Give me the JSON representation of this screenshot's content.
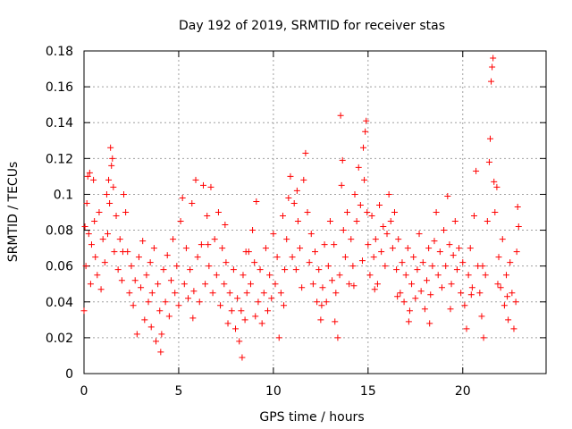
{
  "chart_data": {
    "type": "scatter",
    "title": "Day 192 of 2019, SRMTID for receiver stas",
    "xlabel": "GPS time / hours",
    "ylabel": "SRMTID / TECUs",
    "xlim": [
      0,
      24.4
    ],
    "ylim": [
      0,
      0.18
    ],
    "xticks": [
      0,
      5,
      10,
      15,
      20
    ],
    "xtick_labels": [
      "0",
      "5",
      "10",
      "15",
      "20"
    ],
    "yticks": [
      0,
      0.02,
      0.04,
      0.06,
      0.08,
      0.1,
      0.12,
      0.14,
      0.16,
      0.18
    ],
    "ytick_labels": [
      "0",
      "0.02",
      "0.04",
      "0.06",
      "0.08",
      "0.1",
      "0.12",
      "0.14",
      "0.16",
      "0.18"
    ],
    "grid": true,
    "marker": "+",
    "color": "#ff0000",
    "series": [
      {
        "name": "SRMTID",
        "points": [
          [
            0.0,
            0.035
          ],
          [
            0.05,
            0.082
          ],
          [
            0.1,
            0.06
          ],
          [
            0.15,
            0.095
          ],
          [
            0.2,
            0.11
          ],
          [
            0.25,
            0.078
          ],
          [
            0.3,
            0.112
          ],
          [
            0.35,
            0.05
          ],
          [
            0.4,
            0.072
          ],
          [
            0.5,
            0.108
          ],
          [
            0.55,
            0.085
          ],
          [
            0.6,
            0.065
          ],
          [
            0.7,
            0.055
          ],
          [
            0.8,
            0.09
          ],
          [
            0.9,
            0.047
          ],
          [
            1.0,
            0.075
          ],
          [
            1.1,
            0.062
          ],
          [
            1.2,
            0.1
          ],
          [
            1.3,
            0.108
          ],
          [
            1.35,
            0.095
          ],
          [
            1.4,
            0.126
          ],
          [
            1.45,
            0.116
          ],
          [
            1.5,
            0.12
          ],
          [
            1.55,
            0.104
          ],
          [
            1.6,
            0.068
          ],
          [
            1.7,
            0.088
          ],
          [
            1.8,
            0.058
          ],
          [
            1.9,
            0.075
          ],
          [
            2.0,
            0.052
          ],
          [
            2.1,
            0.1
          ],
          [
            2.2,
            0.09
          ],
          [
            2.3,
            0.068
          ],
          [
            2.4,
            0.045
          ],
          [
            2.5,
            0.06
          ],
          [
            2.6,
            0.038
          ],
          [
            2.7,
            0.052
          ],
          [
            2.8,
            0.022
          ],
          [
            2.9,
            0.065
          ],
          [
            3.0,
            0.048
          ],
          [
            3.1,
            0.074
          ],
          [
            3.2,
            0.03
          ],
          [
            3.3,
            0.055
          ],
          [
            3.4,
            0.04
          ],
          [
            3.5,
            0.062
          ],
          [
            3.6,
            0.045
          ],
          [
            3.7,
            0.07
          ],
          [
            3.8,
            0.018
          ],
          [
            3.9,
            0.05
          ],
          [
            4.0,
            0.035
          ],
          [
            4.05,
            0.012
          ],
          [
            4.1,
            0.022
          ],
          [
            4.2,
            0.058
          ],
          [
            4.3,
            0.04
          ],
          [
            4.4,
            0.066
          ],
          [
            4.5,
            0.032
          ],
          [
            4.6,
            0.052
          ],
          [
            4.7,
            0.075
          ],
          [
            4.8,
            0.045
          ],
          [
            4.9,
            0.06
          ],
          [
            5.0,
            0.038
          ],
          [
            5.1,
            0.085
          ],
          [
            5.2,
            0.098
          ],
          [
            5.3,
            0.05
          ],
          [
            5.4,
            0.07
          ],
          [
            5.5,
            0.042
          ],
          [
            5.6,
            0.058
          ],
          [
            5.7,
            0.095
          ],
          [
            5.8,
            0.046
          ],
          [
            5.9,
            0.108
          ],
          [
            6.0,
            0.065
          ],
          [
            6.1,
            0.04
          ],
          [
            6.2,
            0.072
          ],
          [
            6.3,
            0.105
          ],
          [
            6.4,
            0.05
          ],
          [
            6.5,
            0.088
          ],
          [
            6.6,
            0.06
          ],
          [
            6.7,
            0.104
          ],
          [
            6.8,
            0.045
          ],
          [
            6.9,
            0.075
          ],
          [
            7.0,
            0.055
          ],
          [
            7.1,
            0.09
          ],
          [
            7.2,
            0.038
          ],
          [
            7.3,
            0.07
          ],
          [
            7.4,
            0.05
          ],
          [
            7.5,
            0.062
          ],
          [
            7.6,
            0.028
          ],
          [
            7.7,
            0.045
          ],
          [
            7.8,
            0.035
          ],
          [
            7.9,
            0.058
          ],
          [
            8.0,
            0.025
          ],
          [
            8.1,
            0.042
          ],
          [
            8.2,
            0.018
          ],
          [
            8.3,
            0.035
          ],
          [
            8.35,
            0.009
          ],
          [
            8.4,
            0.055
          ],
          [
            8.5,
            0.03
          ],
          [
            8.6,
            0.045
          ],
          [
            8.7,
            0.068
          ],
          [
            8.8,
            0.05
          ],
          [
            8.9,
            0.08
          ],
          [
            9.0,
            0.062
          ],
          [
            9.1,
            0.096
          ],
          [
            9.2,
            0.04
          ],
          [
            9.3,
            0.058
          ],
          [
            9.4,
            0.028
          ],
          [
            9.5,
            0.045
          ],
          [
            9.6,
            0.07
          ],
          [
            9.7,
            0.035
          ],
          [
            9.8,
            0.055
          ],
          [
            9.9,
            0.042
          ],
          [
            10.0,
            0.078
          ],
          [
            10.1,
            0.05
          ],
          [
            10.2,
            0.065
          ],
          [
            10.3,
            0.02
          ],
          [
            10.4,
            0.045
          ],
          [
            10.5,
            0.088
          ],
          [
            10.6,
            0.058
          ],
          [
            10.7,
            0.075
          ],
          [
            10.8,
            0.098
          ],
          [
            10.9,
            0.11
          ],
          [
            11.0,
            0.065
          ],
          [
            11.1,
            0.095
          ],
          [
            11.2,
            0.058
          ],
          [
            11.3,
            0.085
          ],
          [
            11.4,
            0.07
          ],
          [
            11.5,
            0.048
          ],
          [
            11.6,
            0.108
          ],
          [
            11.7,
            0.123
          ],
          [
            11.8,
            0.09
          ],
          [
            11.9,
            0.062
          ],
          [
            12.0,
            0.078
          ],
          [
            12.1,
            0.05
          ],
          [
            12.2,
            0.068
          ],
          [
            12.3,
            0.04
          ],
          [
            12.4,
            0.058
          ],
          [
            12.5,
            0.03
          ],
          [
            12.6,
            0.048
          ],
          [
            12.7,
            0.072
          ],
          [
            12.8,
            0.04
          ],
          [
            12.9,
            0.06
          ],
          [
            13.0,
            0.085
          ],
          [
            13.1,
            0.052
          ],
          [
            13.2,
            0.072
          ],
          [
            13.3,
            0.045
          ],
          [
            13.4,
            0.02
          ],
          [
            13.5,
            0.055
          ],
          [
            13.55,
            0.144
          ],
          [
            13.6,
            0.105
          ],
          [
            13.65,
            0.119
          ],
          [
            13.7,
            0.08
          ],
          [
            13.8,
            0.065
          ],
          [
            13.9,
            0.09
          ],
          [
            14.0,
            0.05
          ],
          [
            14.1,
            0.075
          ],
          [
            14.2,
            0.06
          ],
          [
            14.3,
            0.1
          ],
          [
            14.4,
            0.085
          ],
          [
            14.5,
            0.115
          ],
          [
            14.6,
            0.094
          ],
          [
            14.7,
            0.063
          ],
          [
            14.75,
            0.126
          ],
          [
            14.8,
            0.108
          ],
          [
            14.85,
            0.135
          ],
          [
            14.9,
            0.141
          ],
          [
            14.95,
            0.09
          ],
          [
            15.0,
            0.072
          ],
          [
            15.1,
            0.055
          ],
          [
            15.2,
            0.088
          ],
          [
            15.3,
            0.065
          ],
          [
            15.4,
            0.075
          ],
          [
            15.5,
            0.05
          ],
          [
            15.6,
            0.094
          ],
          [
            15.7,
            0.068
          ],
          [
            15.8,
            0.082
          ],
          [
            15.9,
            0.06
          ],
          [
            16.0,
            0.078
          ],
          [
            16.1,
            0.1
          ],
          [
            16.2,
            0.085
          ],
          [
            16.3,
            0.07
          ],
          [
            16.4,
            0.09
          ],
          [
            16.5,
            0.058
          ],
          [
            16.6,
            0.075
          ],
          [
            16.7,
            0.045
          ],
          [
            16.8,
            0.062
          ],
          [
            16.9,
            0.04
          ],
          [
            17.0,
            0.055
          ],
          [
            17.1,
            0.07
          ],
          [
            17.2,
            0.035
          ],
          [
            17.3,
            0.05
          ],
          [
            17.4,
            0.065
          ],
          [
            17.5,
            0.042
          ],
          [
            17.6,
            0.058
          ],
          [
            17.7,
            0.078
          ],
          [
            17.8,
            0.046
          ],
          [
            17.9,
            0.062
          ],
          [
            18.0,
            0.036
          ],
          [
            18.1,
            0.052
          ],
          [
            18.2,
            0.07
          ],
          [
            18.3,
            0.044
          ],
          [
            18.4,
            0.06
          ],
          [
            18.5,
            0.074
          ],
          [
            18.6,
            0.09
          ],
          [
            18.7,
            0.055
          ],
          [
            18.8,
            0.068
          ],
          [
            18.9,
            0.048
          ],
          [
            19.0,
            0.08
          ],
          [
            19.1,
            0.06
          ],
          [
            19.2,
            0.099
          ],
          [
            19.3,
            0.072
          ],
          [
            19.4,
            0.05
          ],
          [
            19.5,
            0.066
          ],
          [
            19.6,
            0.085
          ],
          [
            19.7,
            0.058
          ],
          [
            19.8,
            0.07
          ],
          [
            19.9,
            0.045
          ],
          [
            20.0,
            0.062
          ],
          [
            20.1,
            0.038
          ],
          [
            20.2,
            0.025
          ],
          [
            20.3,
            0.055
          ],
          [
            20.4,
            0.07
          ],
          [
            20.5,
            0.048
          ],
          [
            20.6,
            0.088
          ],
          [
            20.7,
            0.113
          ],
          [
            20.8,
            0.06
          ],
          [
            20.9,
            0.045
          ],
          [
            21.0,
            0.032
          ],
          [
            21.1,
            0.02
          ],
          [
            21.2,
            0.055
          ],
          [
            21.3,
            0.085
          ],
          [
            21.4,
            0.118
          ],
          [
            21.45,
            0.131
          ],
          [
            21.5,
            0.163
          ],
          [
            21.55,
            0.171
          ],
          [
            21.6,
            0.176
          ],
          [
            21.65,
            0.107
          ],
          [
            21.7,
            0.09
          ],
          [
            21.8,
            0.104
          ],
          [
            21.9,
            0.065
          ],
          [
            22.0,
            0.048
          ],
          [
            22.1,
            0.075
          ],
          [
            22.2,
            0.038
          ],
          [
            22.3,
            0.055
          ],
          [
            22.4,
            0.03
          ],
          [
            22.5,
            0.062
          ],
          [
            22.6,
            0.045
          ],
          [
            22.7,
            0.025
          ],
          [
            22.8,
            0.04
          ],
          [
            22.85,
            0.068
          ],
          [
            22.9,
            0.093
          ],
          [
            22.95,
            0.082
          ],
          [
            1.25,
            0.078
          ],
          [
            2.05,
            0.068
          ],
          [
            3.55,
            0.026
          ],
          [
            5.75,
            0.031
          ],
          [
            6.55,
            0.072
          ],
          [
            7.45,
            0.083
          ],
          [
            8.55,
            0.068
          ],
          [
            9.05,
            0.032
          ],
          [
            10.55,
            0.038
          ],
          [
            11.25,
            0.102
          ],
          [
            12.55,
            0.038
          ],
          [
            13.25,
            0.029
          ],
          [
            14.25,
            0.049
          ],
          [
            15.35,
            0.047
          ],
          [
            16.55,
            0.043
          ],
          [
            17.15,
            0.029
          ],
          [
            18.25,
            0.028
          ],
          [
            19.35,
            0.036
          ],
          [
            20.45,
            0.044
          ],
          [
            21.05,
            0.06
          ],
          [
            21.85,
            0.05
          ],
          [
            22.35,
            0.043
          ]
        ]
      }
    ]
  }
}
